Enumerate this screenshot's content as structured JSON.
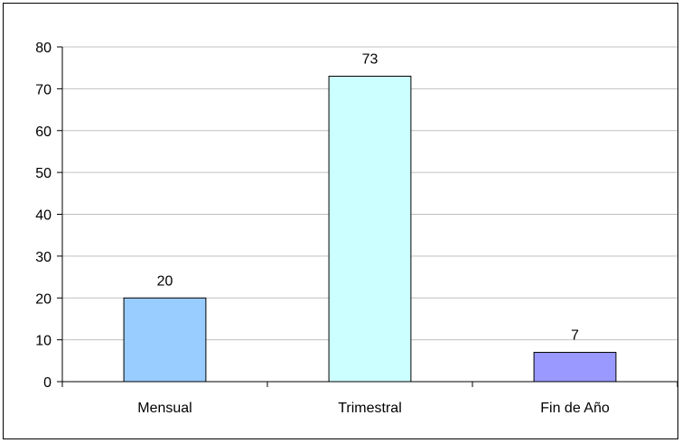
{
  "chart_data": {
    "type": "bar",
    "categories": [
      "Mensual",
      "Trimestral",
      "Fin de Año"
    ],
    "values": [
      20,
      73,
      7
    ],
    "data_labels": [
      "20",
      "73",
      "7"
    ],
    "bar_colors": [
      "#99ccff",
      "#ccffff",
      "#9999ff"
    ],
    "title": "",
    "xlabel": "",
    "ylabel": "",
    "ylim": [
      0,
      80
    ],
    "yticks": [
      0,
      10,
      20,
      30,
      40,
      50,
      60,
      70,
      80
    ],
    "ytick_labels": [
      "0",
      "10",
      "20",
      "30",
      "40",
      "50",
      "60",
      "70",
      "80"
    ],
    "grid": true,
    "gridline_color": "#c0c0c0",
    "legend": false
  }
}
